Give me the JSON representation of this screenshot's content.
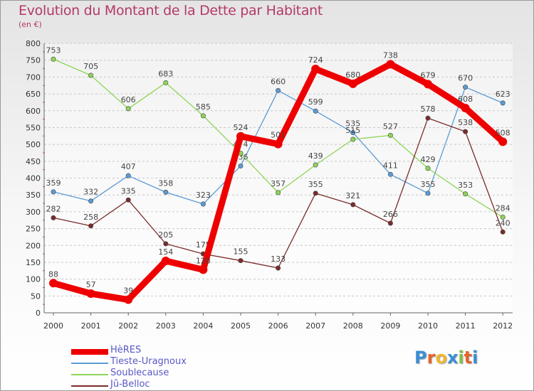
{
  "header": {
    "title": "Evolution du Montant de la Dette par Habitant",
    "unit": "(en €)"
  },
  "logo": {
    "text": "Proxiti",
    "letter_colors": [
      "#3a8fd6",
      "#e8622a",
      "#f2b632",
      "#3a8fd6",
      "#7cc242",
      "#e8622a",
      "#3a8fd6"
    ]
  },
  "chart_data": {
    "type": "line",
    "title": "Evolution du Montant de la Dette par Habitant",
    "ylabel": "(en €)",
    "xlabel": "",
    "x": [
      "2000",
      "2001",
      "2002",
      "2003",
      "2004",
      "2005",
      "2006",
      "2007",
      "2008",
      "2009",
      "2010",
      "2011",
      "2012"
    ],
    "ylim": [
      0,
      800
    ],
    "yticks": [
      0,
      50,
      100,
      150,
      200,
      250,
      300,
      350,
      400,
      450,
      500,
      550,
      600,
      650,
      700,
      750,
      800
    ],
    "grid": "horizontal dashed",
    "legend_position": "bottom-left",
    "series": [
      {
        "name": "Tieste-Uragnoux",
        "color": "#5b9bd5",
        "width": "thin",
        "values": [
          359,
          332,
          407,
          358,
          323,
          436,
          660,
          599,
          535,
          411,
          355,
          670,
          623
        ],
        "labels": [
          "359",
          "332",
          "407",
          "358",
          "323",
          "436",
          "660",
          "599",
          "535",
          "411",
          "355",
          "670",
          "623"
        ]
      },
      {
        "name": "Soublecause",
        "color": "#8ed557",
        "width": "thin",
        "values": [
          753,
          705,
          606,
          683,
          585,
          474,
          357,
          439,
          515,
          527,
          429,
          353,
          284
        ],
        "labels": [
          "753",
          "705",
          "606",
          "683",
          "585",
          "474",
          "357",
          "439",
          "515",
          "527",
          "429",
          "353",
          "284"
        ]
      },
      {
        "name": "Jû-Belloc",
        "color": "#7b2b2b",
        "width": "thin",
        "values": [
          282,
          258,
          335,
          205,
          175,
          155,
          133,
          355,
          321,
          266,
          578,
          538,
          240
        ],
        "labels": [
          "282",
          "258",
          "335",
          "205",
          "175",
          "155",
          "133",
          "355",
          "321",
          "266",
          "578",
          "538",
          "240"
        ]
      },
      {
        "name": "HèRES",
        "color": "#ee0000",
        "width": "thick",
        "values": [
          88,
          57,
          39,
          154,
          128,
          524,
          501,
          724,
          680,
          738,
          679,
          608,
          508
        ],
        "labels": [
          "88",
          "57",
          "39",
          "154",
          "128",
          "524",
          "501",
          "724",
          "680",
          "738",
          "679",
          "608",
          "508"
        ]
      }
    ]
  },
  "legend": {
    "items": [
      {
        "label": "HèRES",
        "color": "#ee0000",
        "width": "thick"
      },
      {
        "label": "Tieste-Uragnoux",
        "color": "#5b9bd5",
        "width": "thin"
      },
      {
        "label": "Soublecause",
        "color": "#8ed557",
        "width": "thin"
      },
      {
        "label": "Jû-Belloc",
        "color": "#7b2b2b",
        "width": "thin"
      }
    ]
  }
}
